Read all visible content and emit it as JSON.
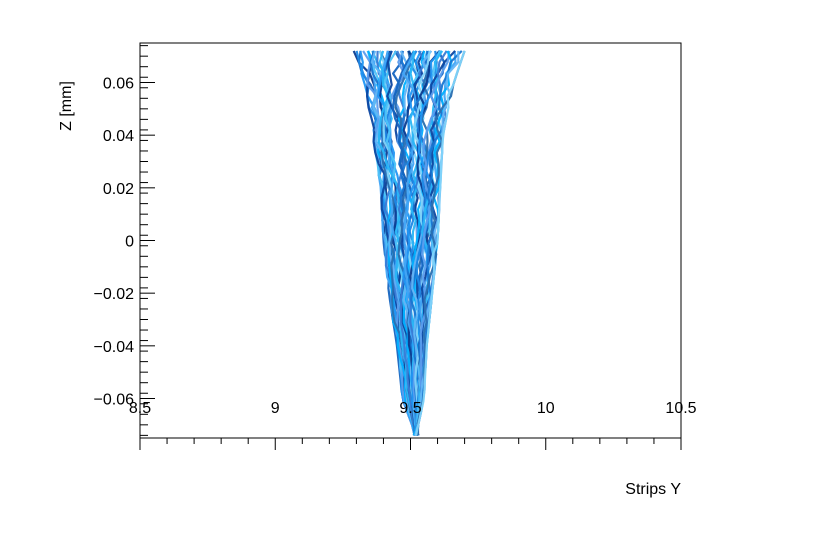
{
  "chart_data": {
    "type": "line",
    "xlabel": "Strips Y",
    "ylabel": "Z [mm]",
    "xlim": [
      8.5,
      10.5
    ],
    "ylim": [
      -0.075,
      0.075
    ],
    "x_ticks": [
      "8.5",
      "9",
      "9.5",
      "10",
      "10.5"
    ],
    "y_ticks": [
      "−0.06",
      "−0.04",
      "−0.02",
      "0",
      "0.02",
      "0.04",
      "0.06"
    ],
    "grid": false,
    "legend": "none",
    "series_description": "Many drift trajectories fanning from about x=9.3–9.7 at z=0.072 mm and converging to x≈9.52 at z=-0.074 mm",
    "series_count": 60,
    "envelope": {
      "z": [
        0.072,
        0.06,
        0.04,
        0.02,
        0.0,
        -0.02,
        -0.04,
        -0.06,
        -0.074
      ],
      "x_min": [
        9.29,
        9.33,
        9.36,
        9.39,
        9.4,
        9.42,
        9.45,
        9.47,
        9.52
      ],
      "x_max": [
        9.7,
        9.66,
        9.62,
        9.61,
        9.6,
        9.58,
        9.56,
        9.55,
        9.52
      ]
    },
    "colors": [
      "#0b3d91",
      "#1565c0",
      "#1e88e5",
      "#2196f3",
      "#42a5f5",
      "#4fc3f7",
      "#29b6f6",
      "#0d47a1",
      "#3a7bd5",
      "#5c9ded",
      "#00b0ff",
      "#1976d2",
      "#64b5f6",
      "#2a6fb0",
      "#81d4fa"
    ]
  }
}
